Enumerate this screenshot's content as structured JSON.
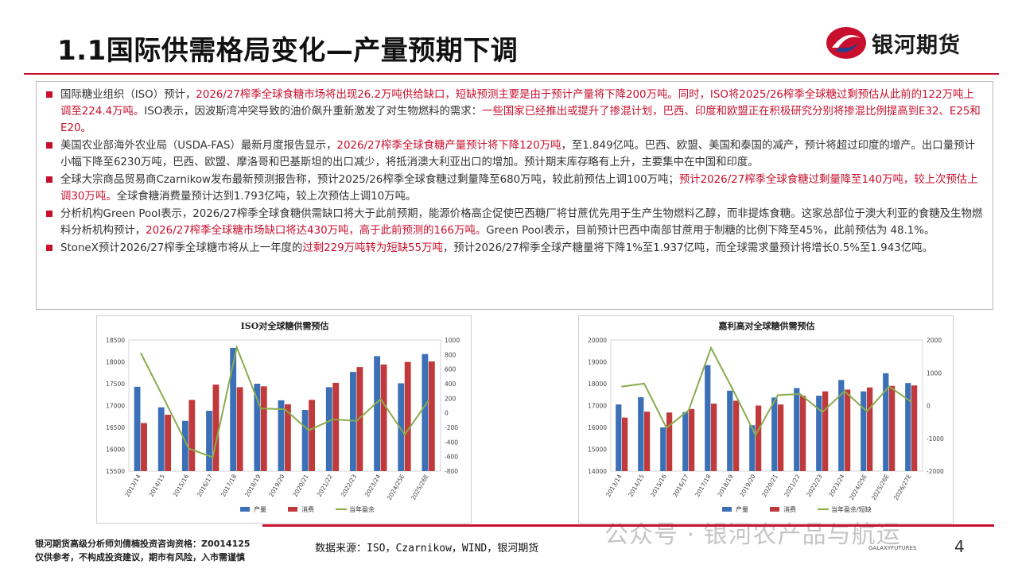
{
  "header": {
    "title": "1.1国际供需格局变化—产量预期下调",
    "logo_text": "银河期货"
  },
  "bullets": [
    {
      "segments": [
        {
          "text": "国际糖业组织（ISO）预计，",
          "red": false
        },
        {
          "text": "2026/27榨季全球食糖市场将出现26.2万吨供给缺口，短缺预测主要是由于预计产量将下降200万吨。同时，ISO将2025/26榨季全球糖过剩预估从此前的122万吨上调至224.4万吨。",
          "red": true
        },
        {
          "text": "ISO表示，因波斯湾冲突导致的油价飙升重新激发了对生物燃料的需求：",
          "red": false
        },
        {
          "text": "一些国家已经推出或提升了掺混计划，巴西、印度和欧盟正在积极研究分别将掺混比例提高到E32、E25和E20。",
          "red": true
        }
      ]
    },
    {
      "segments": [
        {
          "text": "美国农业部海外农业局（USDA-FAS）最新月度报告显示，",
          "red": false
        },
        {
          "text": "2026/27榨季全球食糖产量预计将下降120万吨",
          "red": true
        },
        {
          "text": "，至1.849亿吨。巴西、欧盟、美国和泰国的减产，预计将超过印度的增产。出口量预计小幅下降至6230万吨，巴西、欧盟、摩洛哥和巴基斯坦的出口减少，将抵消澳大利亚出口的增加。预计期末库存略有上升，主要集中在中国和印度。",
          "red": false
        }
      ]
    },
    {
      "segments": [
        {
          "text": "全球大宗商品贸易商Czarnikow发布最新预测报告称，预计2025/26榨季全球食糖过剩量降至680万吨，较此前预估上调100万吨；",
          "red": false
        },
        {
          "text": "预计2026/27榨季全球食糖过剩量降至140万吨，较上次预估上调30万吨。",
          "red": true
        },
        {
          "text": "全球食糖消费量预计达到1.793亿吨，较上次预估上调10万吨。",
          "red": false
        }
      ]
    },
    {
      "segments": [
        {
          "text": "分析机构Green Pool表示，2026/27榨季全球食糖供需缺口将大于此前预期，能源价格高企促使巴西糖厂将甘蔗优先用于生产生物燃料乙醇，而非提炼食糖。这家总部位于澳大利亚的食糖及生物燃料分析机构预计，",
          "red": false
        },
        {
          "text": "2026/27榨季全球糖市场缺口将达430万吨，高于此前预测的166万吨。",
          "red": true
        },
        {
          "text": "Green Pool表示，目前预计巴西中南部甘蔗用于制糖的比例下降至45%，此前预估为 48.1%。",
          "red": false
        }
      ]
    },
    {
      "segments": [
        {
          "text": "StoneX预计2026/27榨季全球糖市将从上一年度的",
          "red": false
        },
        {
          "text": "过剩229万吨转为短缺55万吨",
          "red": true
        },
        {
          "text": "，预计2026/27榨季全球产糖量将下降1%至1.937亿吨，而全球需求量预计将增长0.5%至1.943亿吨。",
          "red": false
        }
      ]
    }
  ],
  "chart_data": [
    {
      "type": "bar",
      "title": "ISO对全球糖供需预估",
      "categories": [
        "2013/14",
        "2014/15",
        "2015/16",
        "2016/17",
        "2017/18",
        "2018/19",
        "2019/20",
        "2020/21",
        "2021/22",
        "2022/23",
        "2023/24",
        "2024/25E",
        "2025/26E"
      ],
      "ylim": [
        15500,
        18500
      ],
      "yticks": [
        15500,
        16000,
        16500,
        17000,
        17500,
        18000,
        18500
      ],
      "y2lim": [
        -800,
        1000
      ],
      "y2ticks": [
        1000,
        800,
        600,
        400,
        200,
        0,
        -200,
        -400,
        -600,
        -800
      ],
      "series": [
        {
          "name": "产量",
          "kind": "bar",
          "axis": "left",
          "color": "#3b6fb6",
          "values": [
            17430,
            16960,
            16650,
            16880,
            18320,
            17500,
            17120,
            16900,
            17420,
            17770,
            18130,
            17510,
            18180
          ]
        },
        {
          "name": "消费",
          "kind": "bar",
          "axis": "left",
          "color": "#c0393b",
          "values": [
            16600,
            16790,
            17130,
            17480,
            17420,
            17440,
            17030,
            17130,
            17520,
            17880,
            17940,
            18000,
            18010
          ]
        },
        {
          "name": "当年盈余",
          "kind": "line",
          "axis": "right",
          "color": "#8aab4e",
          "values": [
            820,
            170,
            -490,
            -610,
            900,
            60,
            50,
            -240,
            -90,
            -110,
            190,
            -300,
            170
          ]
        }
      ],
      "legend": "bottom"
    },
    {
      "type": "bar",
      "title": "嘉利高对全球糖供需预估",
      "categories": [
        "2013/14",
        "2014/15",
        "2015/16",
        "2016/17",
        "2017/18",
        "2018/19",
        "2019/20",
        "2020/21",
        "2021/22",
        "2022/23",
        "2023/24",
        "2024/25E",
        "2025/26E",
        "2026/27E"
      ],
      "ylim": [
        14000,
        20000
      ],
      "yticks": [
        14000,
        15000,
        16000,
        17000,
        18000,
        19000,
        20000
      ],
      "y2lim": [
        -2000,
        2000
      ],
      "y2ticks": [
        2000,
        1000,
        0,
        -1000,
        -2000
      ],
      "series": [
        {
          "name": "产量",
          "kind": "bar",
          "axis": "left",
          "color": "#3b6fb6",
          "values": [
            17050,
            17380,
            16000,
            16700,
            18850,
            17680,
            16100,
            17370,
            17800,
            17450,
            18170,
            17650,
            18480,
            18030
          ]
        },
        {
          "name": "消费",
          "kind": "bar",
          "axis": "left",
          "color": "#c0393b",
          "values": [
            16450,
            16720,
            16680,
            16840,
            17090,
            17220,
            17000,
            17050,
            17450,
            17650,
            17730,
            17830,
            17900,
            17920
          ]
        },
        {
          "name": "当年盈余/短缺",
          "kind": "line",
          "axis": "right",
          "color": "#8aab4e",
          "values": [
            580,
            670,
            -680,
            -140,
            1760,
            460,
            -900,
            320,
            350,
            -200,
            440,
            -180,
            580,
            110
          ]
        }
      ],
      "legend": "bottom"
    }
  ],
  "footer": {
    "analyst_line": "银河期货高级分析师刘倩楠投资咨询资格：Z0014125",
    "disclaimer_line": "仅供参考，不构成投资建议，期市有风险，入市需谨慎",
    "source": "数据来源：ISO，Czarnikow，WIND，银河期货",
    "watermark": "公众号 · 银河农产品与航运",
    "brand_small": "GALAXYFUTURES",
    "page_number": "4"
  },
  "colors": {
    "accent_red": "#c8102e",
    "bar_blue": "#3b6fb6",
    "bar_red": "#c0393b",
    "line_green": "#8aab4e"
  }
}
